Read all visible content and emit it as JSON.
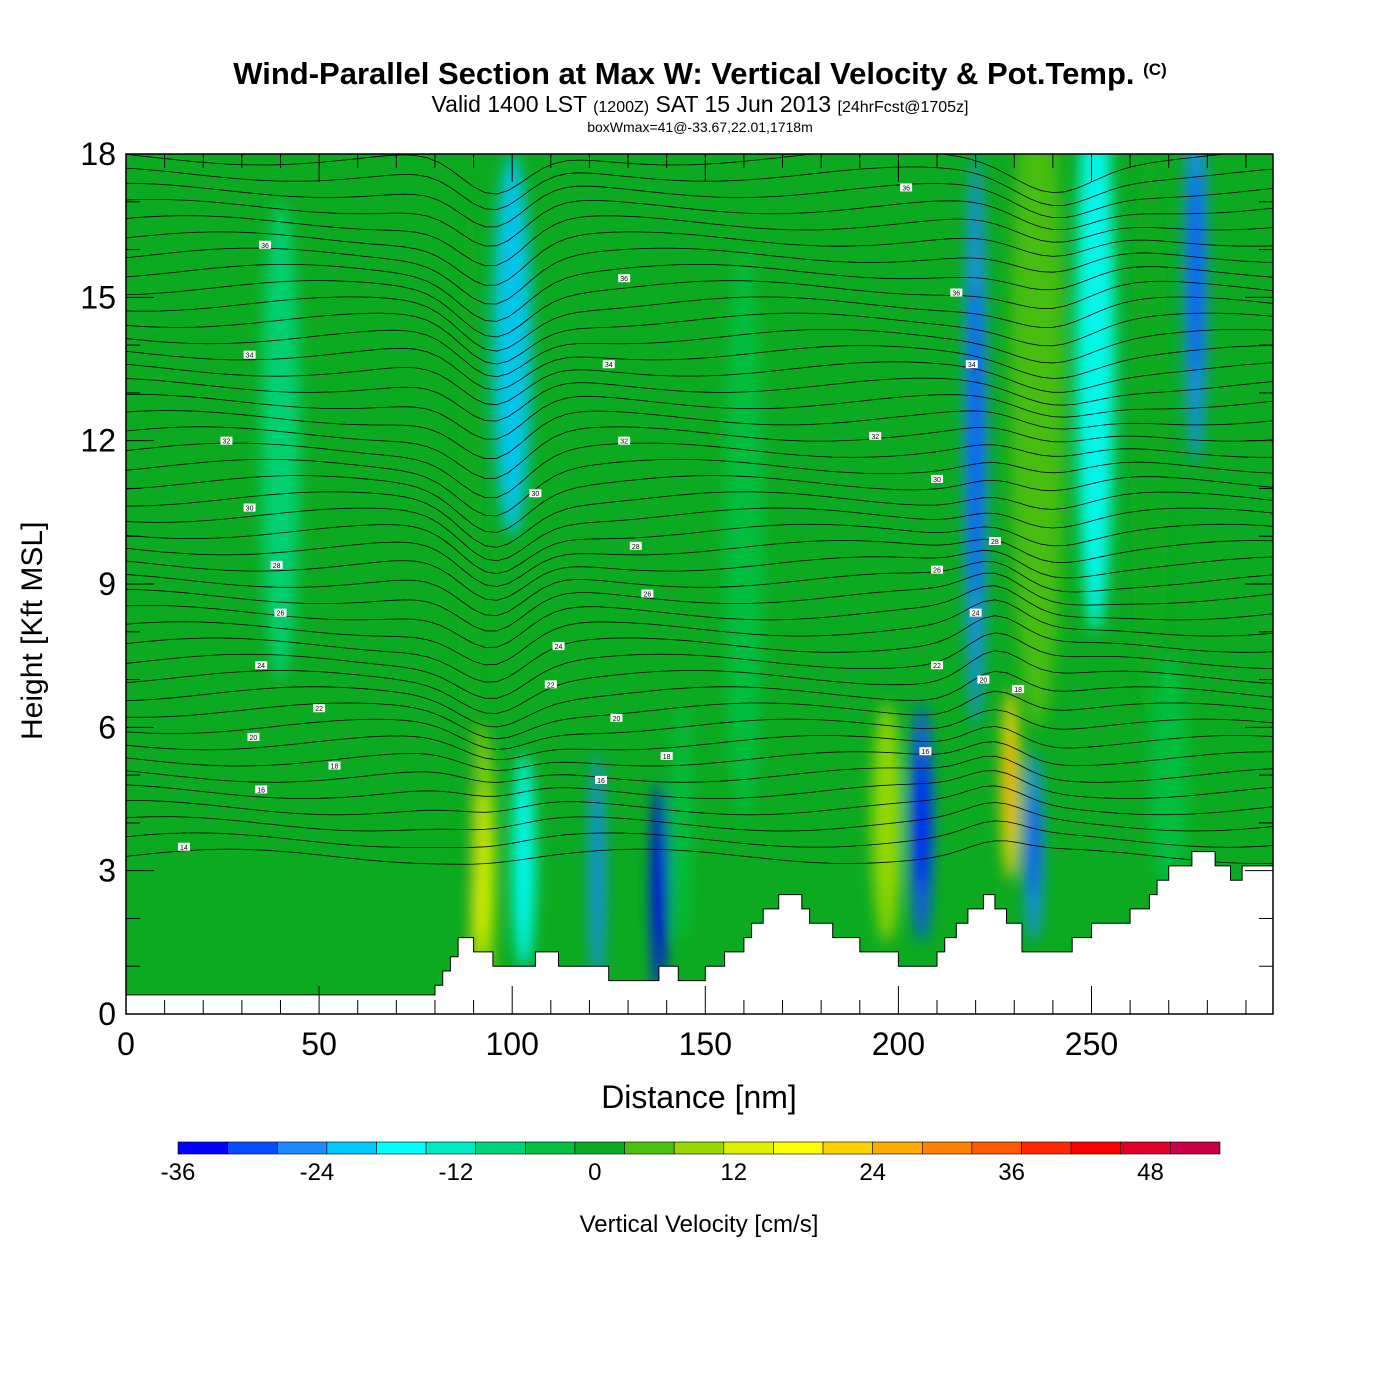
{
  "header": {
    "title": "Wind-Parallel Section at Max W: Vertical Velocity & Pot.Temp.",
    "copyright": "(C)",
    "valid_prefix": "Valid 1400 LST",
    "valid_zulu": "(1200Z)",
    "valid_date": "SAT 15 Jun 2013",
    "forecast": "[24hrFcst@1705z]",
    "boxwmax": "boxWmax=41@-33.67,22.01,1718m"
  },
  "chart_data": {
    "type": "heatmap",
    "title": "Wind-Parallel Section at Max W: Vertical Velocity & Pot.Temp.",
    "xlabel": "Distance [nm]",
    "ylabel": "Height [Kft MSL]",
    "xlim": [
      0,
      297
    ],
    "ylim": [
      0,
      18
    ],
    "x_ticks": [
      0,
      50,
      100,
      150,
      200,
      250
    ],
    "y_ticks": [
      0,
      3,
      6,
      9,
      12,
      15,
      18
    ],
    "colorbar": {
      "label": "Vertical Velocity [cm/s]",
      "range": [
        -36,
        54
      ],
      "step": 6,
      "tick_values": [
        -36,
        -24,
        -12,
        0,
        12,
        24,
        36,
        48
      ],
      "colors": [
        "#0000ff",
        "#0a4cff",
        "#1a8cff",
        "#00c8ff",
        "#00ffff",
        "#00ebc3",
        "#00d47a",
        "#00c040",
        "#0caa20",
        "#4cc010",
        "#98d800",
        "#dcf000",
        "#ffff00",
        "#ffd200",
        "#ffaa00",
        "#ff8200",
        "#ff5a00",
        "#ff2800",
        "#ff0000",
        "#e00028",
        "#c80046"
      ]
    },
    "terrain": [
      [
        0,
        0.4
      ],
      [
        80,
        0.4
      ],
      [
        80,
        0.6
      ],
      [
        82,
        0.6
      ],
      [
        82,
        0.9
      ],
      [
        84,
        0.9
      ],
      [
        84,
        1.2
      ],
      [
        86,
        1.2
      ],
      [
        86,
        1.6
      ],
      [
        90,
        1.6
      ],
      [
        90,
        1.3
      ],
      [
        95,
        1.3
      ],
      [
        95,
        1.0
      ],
      [
        106,
        1.0
      ],
      [
        106,
        1.3
      ],
      [
        112,
        1.3
      ],
      [
        112,
        1.0
      ],
      [
        125,
        1.0
      ],
      [
        125,
        0.7
      ],
      [
        138,
        0.7
      ],
      [
        138,
        1.0
      ],
      [
        143,
        1.0
      ],
      [
        143,
        0.7
      ],
      [
        150,
        0.7
      ],
      [
        150,
        1.0
      ],
      [
        155,
        1.0
      ],
      [
        155,
        1.3
      ],
      [
        160,
        1.3
      ],
      [
        160,
        1.6
      ],
      [
        162,
        1.6
      ],
      [
        162,
        1.9
      ],
      [
        165,
        1.9
      ],
      [
        165,
        2.2
      ],
      [
        169,
        2.2
      ],
      [
        169,
        2.5
      ],
      [
        175,
        2.5
      ],
      [
        175,
        2.2
      ],
      [
        177,
        2.2
      ],
      [
        177,
        1.9
      ],
      [
        183,
        1.9
      ],
      [
        183,
        1.6
      ],
      [
        190,
        1.6
      ],
      [
        190,
        1.3
      ],
      [
        200,
        1.3
      ],
      [
        200,
        1.0
      ],
      [
        210,
        1.0
      ],
      [
        210,
        1.3
      ],
      [
        212,
        1.3
      ],
      [
        212,
        1.6
      ],
      [
        215,
        1.6
      ],
      [
        215,
        1.9
      ],
      [
        218,
        1.9
      ],
      [
        218,
        2.2
      ],
      [
        222,
        2.2
      ],
      [
        222,
        2.5
      ],
      [
        225,
        2.5
      ],
      [
        225,
        2.2
      ],
      [
        228,
        2.2
      ],
      [
        228,
        1.9
      ],
      [
        232,
        1.9
      ],
      [
        232,
        1.3
      ],
      [
        245,
        1.3
      ],
      [
        245,
        1.6
      ],
      [
        250,
        1.6
      ],
      [
        250,
        1.9
      ],
      [
        260,
        1.9
      ],
      [
        260,
        2.2
      ],
      [
        265,
        2.2
      ],
      [
        265,
        2.5
      ],
      [
        267,
        2.5
      ],
      [
        267,
        2.8
      ],
      [
        270,
        2.8
      ],
      [
        270,
        3.1
      ],
      [
        276,
        3.1
      ],
      [
        276,
        3.4
      ],
      [
        282,
        3.4
      ],
      [
        282,
        3.1
      ],
      [
        286,
        3.1
      ],
      [
        286,
        2.8
      ],
      [
        289,
        2.8
      ],
      [
        289,
        3.1
      ],
      [
        297,
        3.1
      ]
    ],
    "features": [
      {
        "x": 92,
        "y": 3.0,
        "w": 8,
        "h": 6,
        "value": 28
      },
      {
        "x": 89,
        "y": 9.5,
        "w": 6,
        "h": 16,
        "value": 14
      },
      {
        "x": 100,
        "y": 14.0,
        "w": 10,
        "h": 8,
        "value": -14
      },
      {
        "x": 103,
        "y": 3.2,
        "w": 6,
        "h": 4.5,
        "value": -10
      },
      {
        "x": 122,
        "y": 3.0,
        "w": 4,
        "h": 5,
        "value": -20
      },
      {
        "x": 138,
        "y": 2.6,
        "w": 4,
        "h": 4.5,
        "value": -32
      },
      {
        "x": 144,
        "y": 4.0,
        "w": 5,
        "h": 5,
        "value": 10
      },
      {
        "x": 197,
        "y": 4.0,
        "w": 8,
        "h": 5,
        "value": 26
      },
      {
        "x": 206,
        "y": 4.0,
        "w": 6,
        "h": 5,
        "value": -28
      },
      {
        "x": 220,
        "y": 12.0,
        "w": 6,
        "h": 12,
        "value": -24
      },
      {
        "x": 229,
        "y": 4.8,
        "w": 5,
        "h": 4,
        "value": 46
      },
      {
        "x": 235,
        "y": 3.5,
        "w": 5,
        "h": 4,
        "value": -24
      },
      {
        "x": 236,
        "y": 13.0,
        "w": 14,
        "h": 14,
        "value": 20
      },
      {
        "x": 251,
        "y": 14.0,
        "w": 10,
        "h": 12,
        "value": -12
      },
      {
        "x": 265,
        "y": 12.0,
        "w": 10,
        "h": 12,
        "value": 16
      },
      {
        "x": 277,
        "y": 15.5,
        "w": 6,
        "h": 8,
        "value": -24
      },
      {
        "x": 160,
        "y": 10.0,
        "w": 10,
        "h": 12,
        "value": 6
      },
      {
        "x": 40,
        "y": 12.0,
        "w": 10,
        "h": 10,
        "value": 4
      },
      {
        "x": 270,
        "y": 5.0,
        "w": 10,
        "h": 5,
        "value": 6
      }
    ],
    "contour_labels": [
      {
        "x": 36,
        "y": 16.1,
        "text": "36"
      },
      {
        "x": 32,
        "y": 13.8,
        "text": "34"
      },
      {
        "x": 26,
        "y": 12.0,
        "text": "32"
      },
      {
        "x": 32,
        "y": 10.6,
        "text": "30"
      },
      {
        "x": 39,
        "y": 9.4,
        "text": "28"
      },
      {
        "x": 40,
        "y": 8.4,
        "text": "26"
      },
      {
        "x": 35,
        "y": 7.3,
        "text": "24"
      },
      {
        "x": 50,
        "y": 6.4,
        "text": "22"
      },
      {
        "x": 33,
        "y": 5.8,
        "text": "20"
      },
      {
        "x": 54,
        "y": 5.2,
        "text": "18"
      },
      {
        "x": 35,
        "y": 4.7,
        "text": "16"
      },
      {
        "x": 15,
        "y": 3.5,
        "text": "14"
      },
      {
        "x": 129,
        "y": 15.4,
        "text": "36"
      },
      {
        "x": 125,
        "y": 13.6,
        "text": "34"
      },
      {
        "x": 129,
        "y": 12.0,
        "text": "32"
      },
      {
        "x": 106,
        "y": 10.9,
        "text": "30"
      },
      {
        "x": 132,
        "y": 9.8,
        "text": "28"
      },
      {
        "x": 135,
        "y": 8.8,
        "text": "26"
      },
      {
        "x": 112,
        "y": 7.7,
        "text": "24"
      },
      {
        "x": 110,
        "y": 6.9,
        "text": "22"
      },
      {
        "x": 127,
        "y": 6.2,
        "text": "20"
      },
      {
        "x": 140,
        "y": 5.4,
        "text": "18"
      },
      {
        "x": 123,
        "y": 4.9,
        "text": "16"
      },
      {
        "x": 202,
        "y": 17.3,
        "text": "36"
      },
      {
        "x": 215,
        "y": 15.1,
        "text": "36"
      },
      {
        "x": 219,
        "y": 13.6,
        "text": "34"
      },
      {
        "x": 194,
        "y": 12.1,
        "text": "32"
      },
      {
        "x": 210,
        "y": 11.2,
        "text": "30"
      },
      {
        "x": 225,
        "y": 9.9,
        "text": "28"
      },
      {
        "x": 210,
        "y": 9.3,
        "text": "26"
      },
      {
        "x": 220,
        "y": 8.4,
        "text": "24"
      },
      {
        "x": 210,
        "y": 7.3,
        "text": "22"
      },
      {
        "x": 222,
        "y": 7.0,
        "text": "20"
      },
      {
        "x": 231,
        "y": 6.8,
        "text": "18"
      },
      {
        "x": 207,
        "y": 5.5,
        "text": "16"
      }
    ]
  }
}
